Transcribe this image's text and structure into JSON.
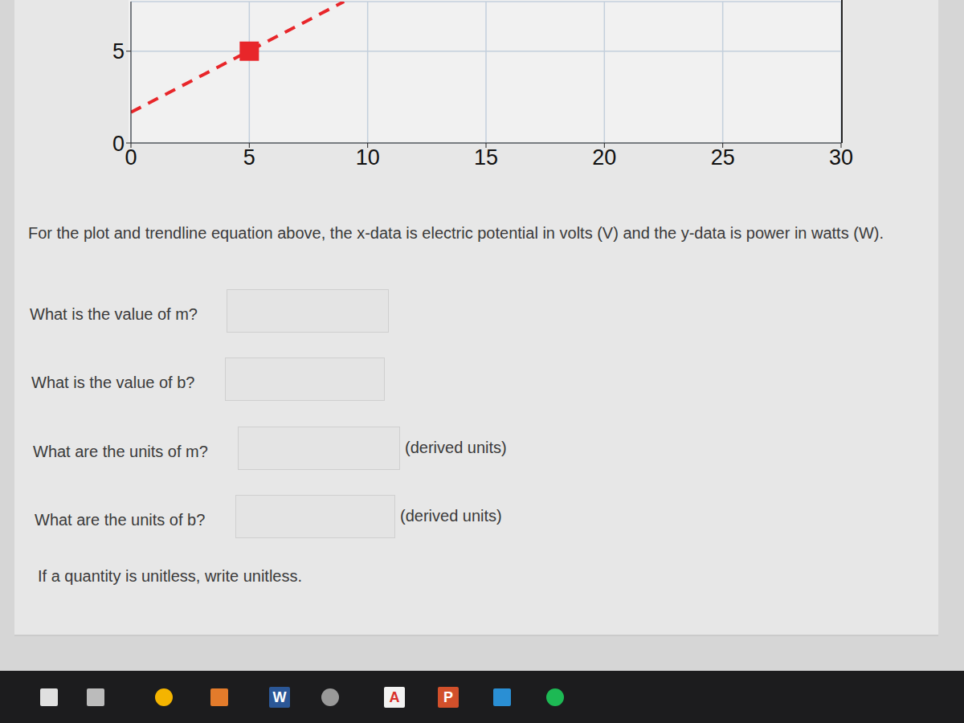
{
  "chart_data": {
    "type": "scatter",
    "x": [
      5
    ],
    "values": [
      5
    ],
    "color": "#e8262a",
    "marker": "square",
    "trendline": {
      "x": [
        0,
        9
      ],
      "values": [
        1.67,
        7.7
      ],
      "color": "#e8262a",
      "line_style": "dashed"
    },
    "xlim": [
      0,
      30
    ],
    "xticks": [
      0,
      5,
      10,
      15,
      20,
      25,
      30
    ],
    "ylim": [
      0,
      7.7
    ],
    "yticks": [
      0,
      5
    ],
    "grid": true
  },
  "form": {
    "intro": "For the plot and trendline equation above, the x-data is electric potential in volts (V) and the y-data is power in watts (W).",
    "questions": [
      {
        "label": "What is the value of m?"
      },
      {
        "label": "What is the value of b?"
      },
      {
        "label": "What are the units of m?",
        "suffix": "(derived units)"
      },
      {
        "label": "What are the units of b?",
        "suffix": "(derived units)"
      }
    ],
    "note": "If a quantity is unitless, write unitless."
  },
  "taskbar": {
    "icons": [
      "W",
      "A",
      "P"
    ]
  }
}
